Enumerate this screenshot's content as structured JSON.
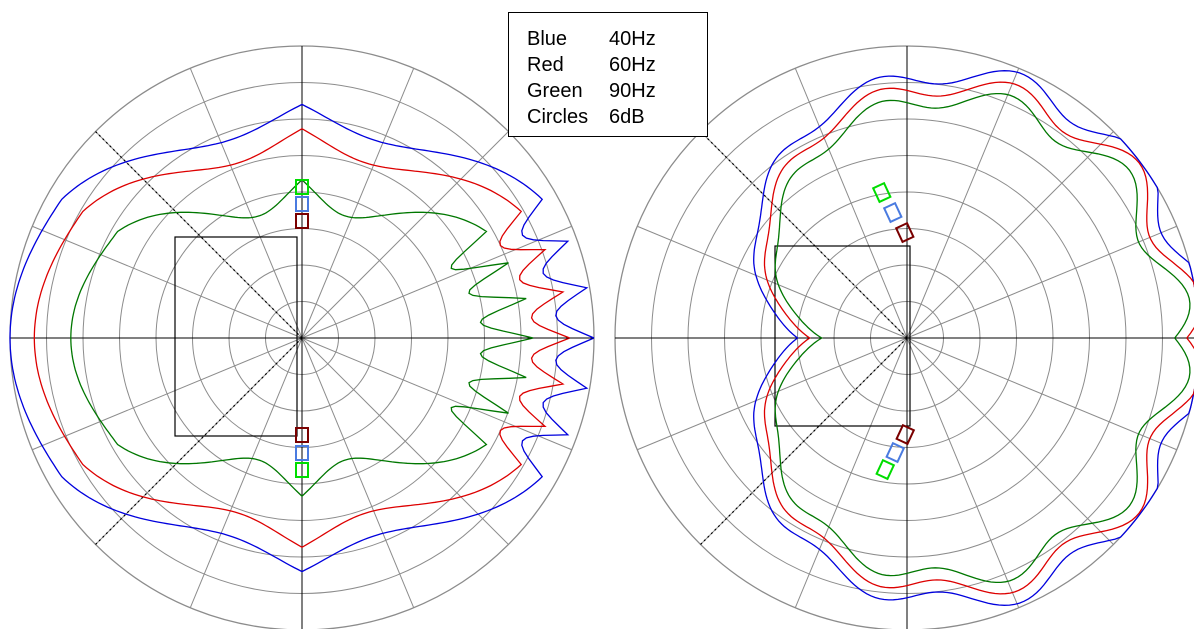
{
  "chart_data": [
    {
      "type": "polar",
      "rings_db": [
        6,
        12,
        18,
        24,
        30,
        36,
        42,
        48
      ],
      "spokes_deg_step": 22.5,
      "grid": true,
      "series": [
        {
          "name": "40Hz",
          "color": "#0000dd",
          "level_db": 0,
          "side_null_db": 16,
          "lobes": 3
        },
        {
          "name": "60Hz",
          "color": "#dd0000",
          "level_db": -4,
          "side_null_db": 16,
          "lobes": 3
        },
        {
          "name": "90Hz",
          "color": "#007700",
          "level_db": -10,
          "side_null_db": 20,
          "lobes": 3
        }
      ]
    },
    {
      "type": "polar",
      "rings_db": [
        6,
        12,
        18,
        24,
        30,
        36,
        42,
        48
      ],
      "spokes_deg_step": 22.5,
      "grid": true,
      "series": [
        {
          "name": "40Hz",
          "color": "#0000dd",
          "level_db": 0,
          "pattern": "cardioid"
        },
        {
          "name": "60Hz",
          "color": "#dd0000",
          "level_db": -2,
          "pattern": "cardioid"
        },
        {
          "name": "90Hz",
          "color": "#007700",
          "level_db": -4,
          "pattern": "cardioid"
        }
      ]
    }
  ],
  "legend": {
    "rows": [
      {
        "key": "Blue",
        "value": "40Hz"
      },
      {
        "key": "Red",
        "value": "60Hz"
      },
      {
        "key": "Green",
        "value": "90Hz"
      },
      {
        "key": "Circles",
        "value": "6dB"
      }
    ]
  },
  "colors": {
    "blue": "#0000dd",
    "red": "#dd0000",
    "green": "#007700",
    "grid": "#8c8c8c"
  }
}
